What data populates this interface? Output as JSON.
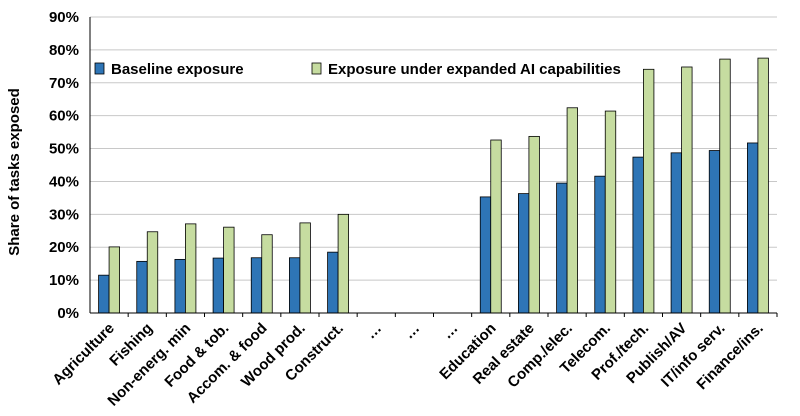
{
  "chart_data": {
    "type": "bar",
    "title": "",
    "xlabel": "",
    "ylabel": "Share of tasks exposed",
    "ylim": [
      0,
      90
    ],
    "y_ticks": [
      "0%",
      "10%",
      "20%",
      "30%",
      "40%",
      "50%",
      "60%",
      "70%",
      "80%",
      "90%"
    ],
    "grid": true,
    "legend_position": "top",
    "categories": [
      "Agriculture",
      "Fishing",
      "Non-energ. min",
      "Food & tob.",
      "Accom. & food",
      "Wood prod.",
      "Construct.",
      "…",
      "…",
      "…",
      "Education",
      "Real estate",
      "Comp./elec.",
      "Telecom.",
      "Prof./tech.",
      "Publish/AV",
      "IT/info serv.",
      "Finance/ins."
    ],
    "series": [
      {
        "name": "Baseline exposure",
        "color": "#2e75b6",
        "values": [
          11.5,
          15.7,
          16.3,
          16.7,
          16.8,
          16.8,
          18.5,
          null,
          null,
          null,
          35.3,
          36.3,
          39.5,
          41.6,
          47.4,
          48.7,
          49.4,
          51.7
        ]
      },
      {
        "name": "Exposure under expanded AI capabilities",
        "color": "#c6dca0",
        "values": [
          20.1,
          24.7,
          27.1,
          26.1,
          23.8,
          27.4,
          30.0,
          null,
          null,
          null,
          52.6,
          53.7,
          62.4,
          61.4,
          74.1,
          74.8,
          77.2,
          77.5
        ]
      }
    ]
  }
}
